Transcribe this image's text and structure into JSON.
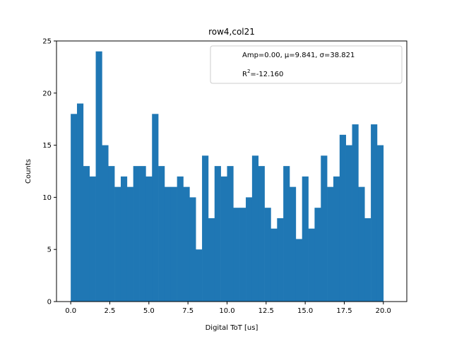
{
  "chart_data": {
    "type": "bar",
    "title": "row4,col21",
    "xlabel": "Digital ToT [us]",
    "ylabel": "Counts",
    "xlim": [
      -0.91,
      21.5
    ],
    "ylim": [
      0,
      25
    ],
    "xticks": [
      0.0,
      2.5,
      5.0,
      7.5,
      10.0,
      12.5,
      15.0,
      17.5,
      20.0
    ],
    "xtick_labels": [
      "0.0",
      "2.5",
      "5.0",
      "7.5",
      "10.0",
      "12.5",
      "15.0",
      "17.5",
      "20.0"
    ],
    "yticks": [
      0,
      5,
      10,
      15,
      20,
      25
    ],
    "ytick_labels": [
      "0",
      "5",
      "10",
      "15",
      "20",
      "25"
    ],
    "bin_start": 0.0,
    "bin_width": 0.4,
    "values": [
      18,
      19,
      13,
      12,
      24,
      15,
      13,
      11,
      12,
      11,
      13,
      13,
      12,
      18,
      13,
      11,
      11,
      12,
      11,
      10,
      5,
      14,
      8,
      13,
      12,
      13,
      9,
      9,
      10,
      14,
      13,
      9,
      7,
      8,
      13,
      11,
      6,
      12,
      7,
      9,
      14,
      11,
      12,
      16,
      15,
      17,
      11,
      8,
      17,
      15
    ],
    "bar_color": "#1f77b4",
    "grid": false,
    "legend": {
      "placement": "top-right",
      "line1": "Amp=0.00, μ=9.841, σ=38.821",
      "line2_base": "R",
      "line2_sup": "2",
      "line2_rest": "=-12.160"
    }
  }
}
